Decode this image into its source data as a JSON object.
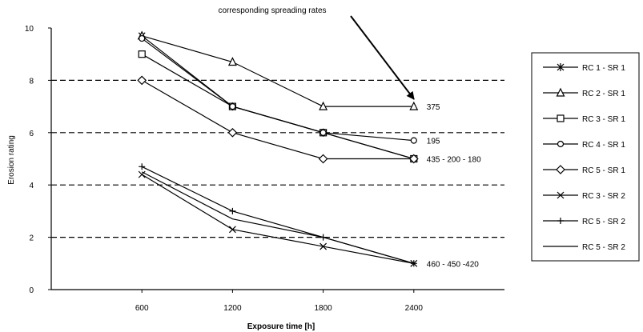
{
  "chart_data": {
    "type": "line",
    "title": "",
    "xlabel": "Exposure time [h]",
    "ylabel": "Erosion rating",
    "x": [
      600,
      1200,
      1800,
      2400
    ],
    "x_ticks": [
      "600",
      "1200",
      "1800",
      "2400"
    ],
    "y_ticks": [
      "0",
      "2",
      "4",
      "6",
      "8",
      "10"
    ],
    "xlim": [
      0,
      3000
    ],
    "ylim": [
      0,
      10
    ],
    "grid": "horizontal dashed at y = 2, 4, 6, 8",
    "legend_position": "right",
    "annotation": "corresponding spreading rates",
    "end_labels": [
      {
        "text": "375",
        "x": 2400,
        "y": 7
      },
      {
        "text": "195",
        "x": 2400,
        "y": 5.7
      },
      {
        "text": "435 - 200 - 180",
        "x": 2400,
        "y": 5
      },
      {
        "text": "460 - 450 -420",
        "x": 2400,
        "y": 1
      }
    ],
    "series": [
      {
        "name": "RC 1 - SR 1",
        "marker": "asterisk",
        "x": [
          600,
          1200,
          1800,
          2400
        ],
        "values": [
          9.7,
          7.0,
          6.0,
          5.0
        ]
      },
      {
        "name": "RC 2 -  SR 1",
        "marker": "triangle",
        "x": [
          600,
          1200,
          1800,
          2400
        ],
        "values": [
          9.7,
          8.7,
          7.0,
          7.0
        ]
      },
      {
        "name": "RC 3 - SR 1",
        "marker": "square",
        "x": [
          600,
          1200,
          1800,
          2400
        ],
        "values": [
          9.0,
          7.0,
          6.0,
          5.0
        ]
      },
      {
        "name": "RC 4 - SR 1",
        "marker": "circle",
        "x": [
          600,
          1200,
          1800,
          2400
        ],
        "values": [
          9.6,
          7.0,
          6.0,
          5.7
        ]
      },
      {
        "name": "RC 5 - SR 1",
        "marker": "diamond",
        "x": [
          600,
          1200,
          1800,
          2400
        ],
        "values": [
          8.0,
          6.0,
          5.0,
          5.0
        ]
      },
      {
        "name": "RC 3 - SR 2",
        "marker": "x",
        "x": [
          600,
          1200,
          1800,
          2400
        ],
        "values": [
          4.4,
          2.3,
          1.65,
          1.0
        ]
      },
      {
        "name": "RC 5 - SR 2",
        "marker": "plus",
        "x": [
          600,
          1200,
          1800,
          2400
        ],
        "values": [
          4.7,
          3.0,
          2.0,
          1.0
        ]
      },
      {
        "name": "RC 5 - SR 2",
        "marker": "none",
        "x": [
          600,
          1200,
          1800,
          2400
        ],
        "values": [
          4.5,
          2.7,
          2.0,
          1.0
        ]
      }
    ]
  }
}
